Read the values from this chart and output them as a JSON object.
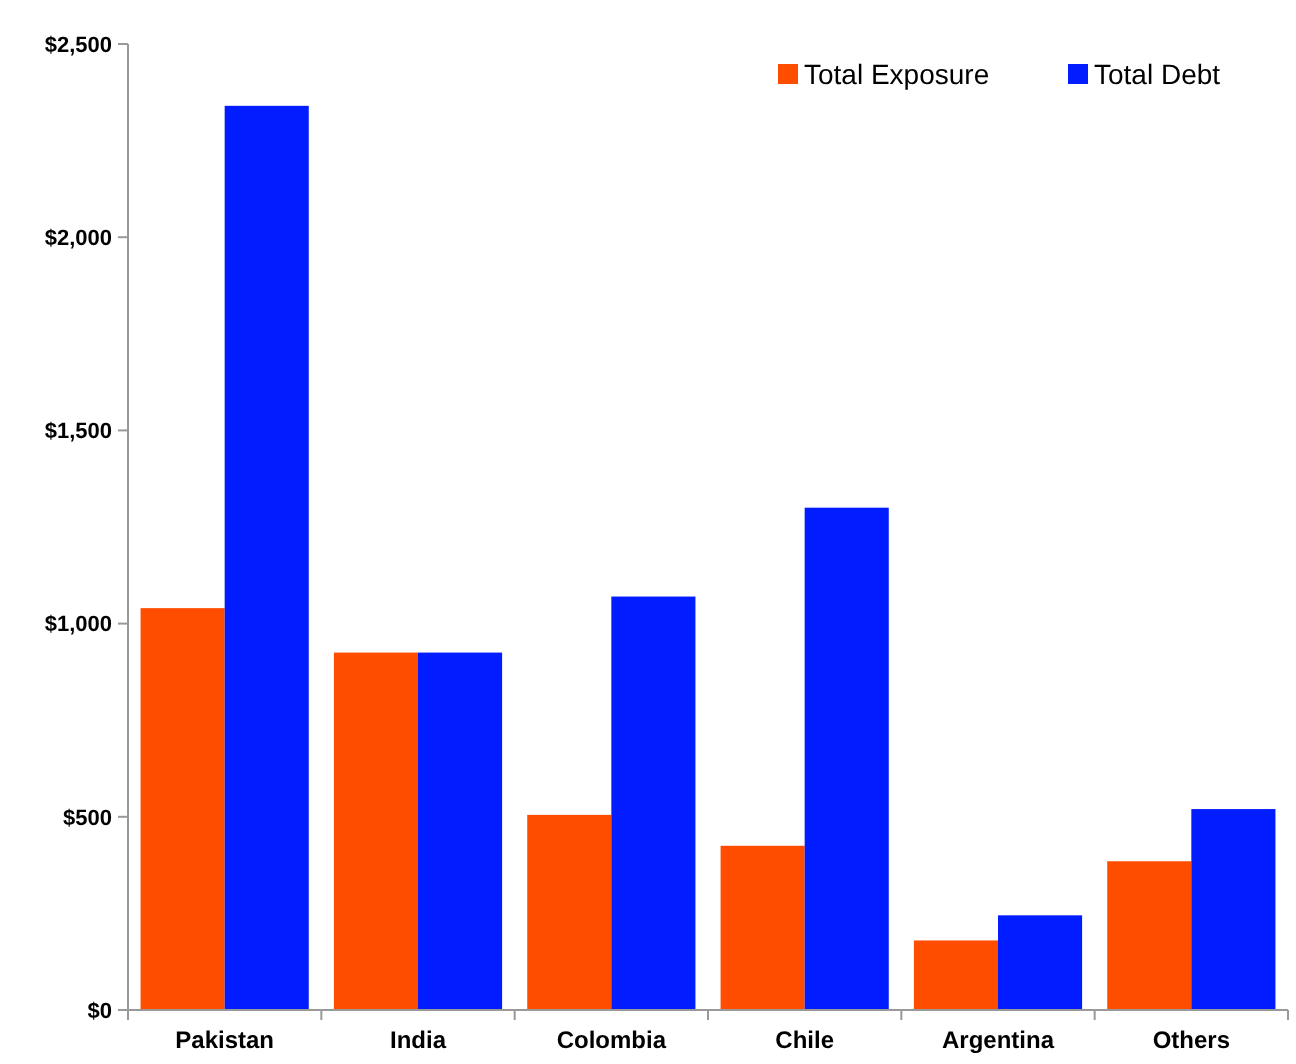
{
  "chart_data": {
    "type": "bar",
    "categories": [
      "Pakistan",
      "India",
      "Colombia",
      "Chile",
      "Argentina",
      "Others"
    ],
    "series": [
      {
        "name": "Total Exposure",
        "color": "#ff4d00",
        "values": [
          1040,
          925,
          505,
          425,
          180,
          385
        ]
      },
      {
        "name": "Total Debt",
        "color": "#001cff",
        "values": [
          2340,
          925,
          1070,
          1300,
          245,
          520
        ]
      }
    ],
    "ylim": [
      0,
      2500
    ],
    "yticks": [
      {
        "value": 0,
        "label": "$0"
      },
      {
        "value": 500,
        "label": "$500"
      },
      {
        "value": 1000,
        "label": "$1,000"
      },
      {
        "value": 1500,
        "label": "$1,500"
      },
      {
        "value": 2000,
        "label": "$2,000"
      },
      {
        "value": 2500,
        "label": "$2,500"
      }
    ],
    "grid": false,
    "legend": "top right"
  }
}
